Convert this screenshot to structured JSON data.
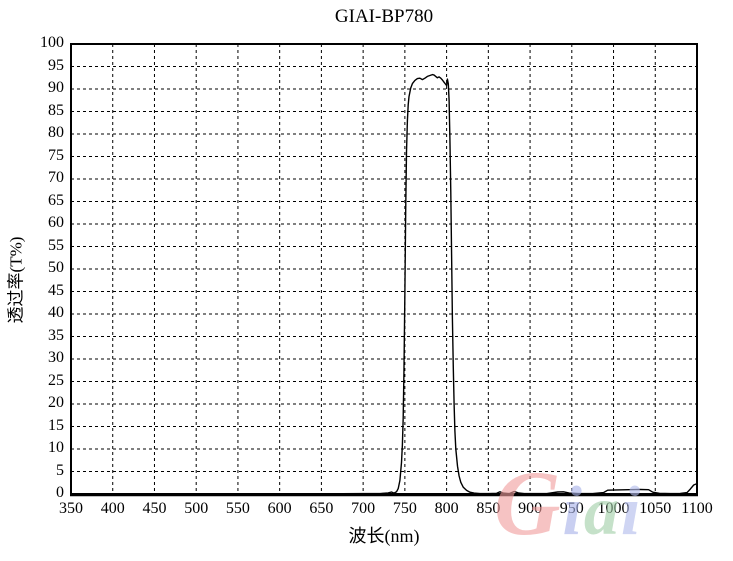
{
  "colors": {
    "background": "#ffffff",
    "axis": "#000000",
    "grid": "#000000",
    "curve": "#000000"
  },
  "watermark": {
    "text": "Giai",
    "letters": [
      {
        "ch": "G",
        "color": "#f29f9f"
      },
      {
        "ch": "i",
        "color": "#a9b3e9"
      },
      {
        "ch": "a",
        "color": "#a3cfa9"
      },
      {
        "ch": "i",
        "color": "#b3bcec"
      }
    ]
  },
  "chart_data": {
    "type": "line",
    "title": "GIAI-BP780",
    "xlabel": "波长(nm)",
    "ylabel": "透过率(T%)",
    "xlim": [
      350,
      1100
    ],
    "ylim": [
      0,
      100
    ],
    "x_ticks": [
      350,
      400,
      450,
      500,
      550,
      600,
      650,
      700,
      750,
      800,
      850,
      900,
      950,
      1000,
      1050,
      1100
    ],
    "y_ticks": [
      0,
      5,
      10,
      15,
      20,
      25,
      30,
      35,
      40,
      45,
      50,
      55,
      60,
      65,
      70,
      75,
      80,
      85,
      90,
      95,
      100
    ],
    "grid": "dashed",
    "legend": "none",
    "peak_transmittance_percent": 93.2,
    "passband_nm": [
      752,
      808
    ],
    "series": [
      {
        "name": "transmittance",
        "points": [
          [
            350,
            0.05
          ],
          [
            400,
            0.05
          ],
          [
            450,
            0.05
          ],
          [
            500,
            0.05
          ],
          [
            550,
            0.05
          ],
          [
            600,
            0.05
          ],
          [
            650,
            0.05
          ],
          [
            700,
            0.08
          ],
          [
            720,
            0.1
          ],
          [
            730,
            0.25
          ],
          [
            734,
            0.45
          ],
          [
            737,
            0.2
          ],
          [
            740,
            0.5
          ],
          [
            742,
            1.2
          ],
          [
            744,
            3
          ],
          [
            746,
            7
          ],
          [
            747,
            11
          ],
          [
            748,
            17
          ],
          [
            749,
            28
          ],
          [
            750,
            45
          ],
          [
            751,
            63
          ],
          [
            752,
            76
          ],
          [
            753,
            83
          ],
          [
            754,
            86.5
          ],
          [
            755,
            88.3
          ],
          [
            757,
            90.2
          ],
          [
            759,
            91.2
          ],
          [
            762,
            91.9
          ],
          [
            765,
            92.3
          ],
          [
            768,
            92.4
          ],
          [
            771,
            92.1
          ],
          [
            774,
            92.4
          ],
          [
            777,
            92.8
          ],
          [
            780,
            93.0
          ],
          [
            783,
            93.2
          ],
          [
            785,
            93.1
          ],
          [
            787,
            92.8
          ],
          [
            789,
            92.5
          ],
          [
            791,
            92.7
          ],
          [
            793,
            92.4
          ],
          [
            795,
            92.0
          ],
          [
            797,
            91.5
          ],
          [
            799,
            91.0
          ],
          [
            800,
            90.8
          ],
          [
            801,
            92.2
          ],
          [
            802,
            91.2
          ],
          [
            803,
            87.5
          ],
          [
            804,
            79
          ],
          [
            805,
            67
          ],
          [
            806,
            53
          ],
          [
            807,
            39
          ],
          [
            808,
            28
          ],
          [
            809,
            20
          ],
          [
            810,
            14
          ],
          [
            811,
            10
          ],
          [
            813,
            6.2
          ],
          [
            815,
            4.0
          ],
          [
            817,
            2.6
          ],
          [
            820,
            1.5
          ],
          [
            824,
            0.8
          ],
          [
            828,
            0.4
          ],
          [
            833,
            0.2
          ],
          [
            840,
            0.1
          ],
          [
            850,
            0.1
          ],
          [
            860,
            0.15
          ],
          [
            864,
            0.5
          ],
          [
            868,
            0.2
          ],
          [
            875,
            0.1
          ],
          [
            881,
            0.55
          ],
          [
            886,
            0.25
          ],
          [
            893,
            0.1
          ],
          [
            905,
            0.08
          ],
          [
            920,
            0.1
          ],
          [
            933,
            0.45
          ],
          [
            940,
            0.5
          ],
          [
            947,
            0.2
          ],
          [
            958,
            0.1
          ],
          [
            975,
            0.1
          ],
          [
            988,
            0.3
          ],
          [
            993,
            0.85
          ],
          [
            1005,
            0.9
          ],
          [
            1018,
            0.95
          ],
          [
            1032,
            1.0
          ],
          [
            1042,
            0.95
          ],
          [
            1047,
            0.4
          ],
          [
            1055,
            0.15
          ],
          [
            1068,
            0.1
          ],
          [
            1080,
            0.12
          ],
          [
            1088,
            0.3
          ],
          [
            1092,
            1.1
          ],
          [
            1096,
            2.0
          ],
          [
            1100,
            2.3
          ]
        ]
      }
    ]
  }
}
